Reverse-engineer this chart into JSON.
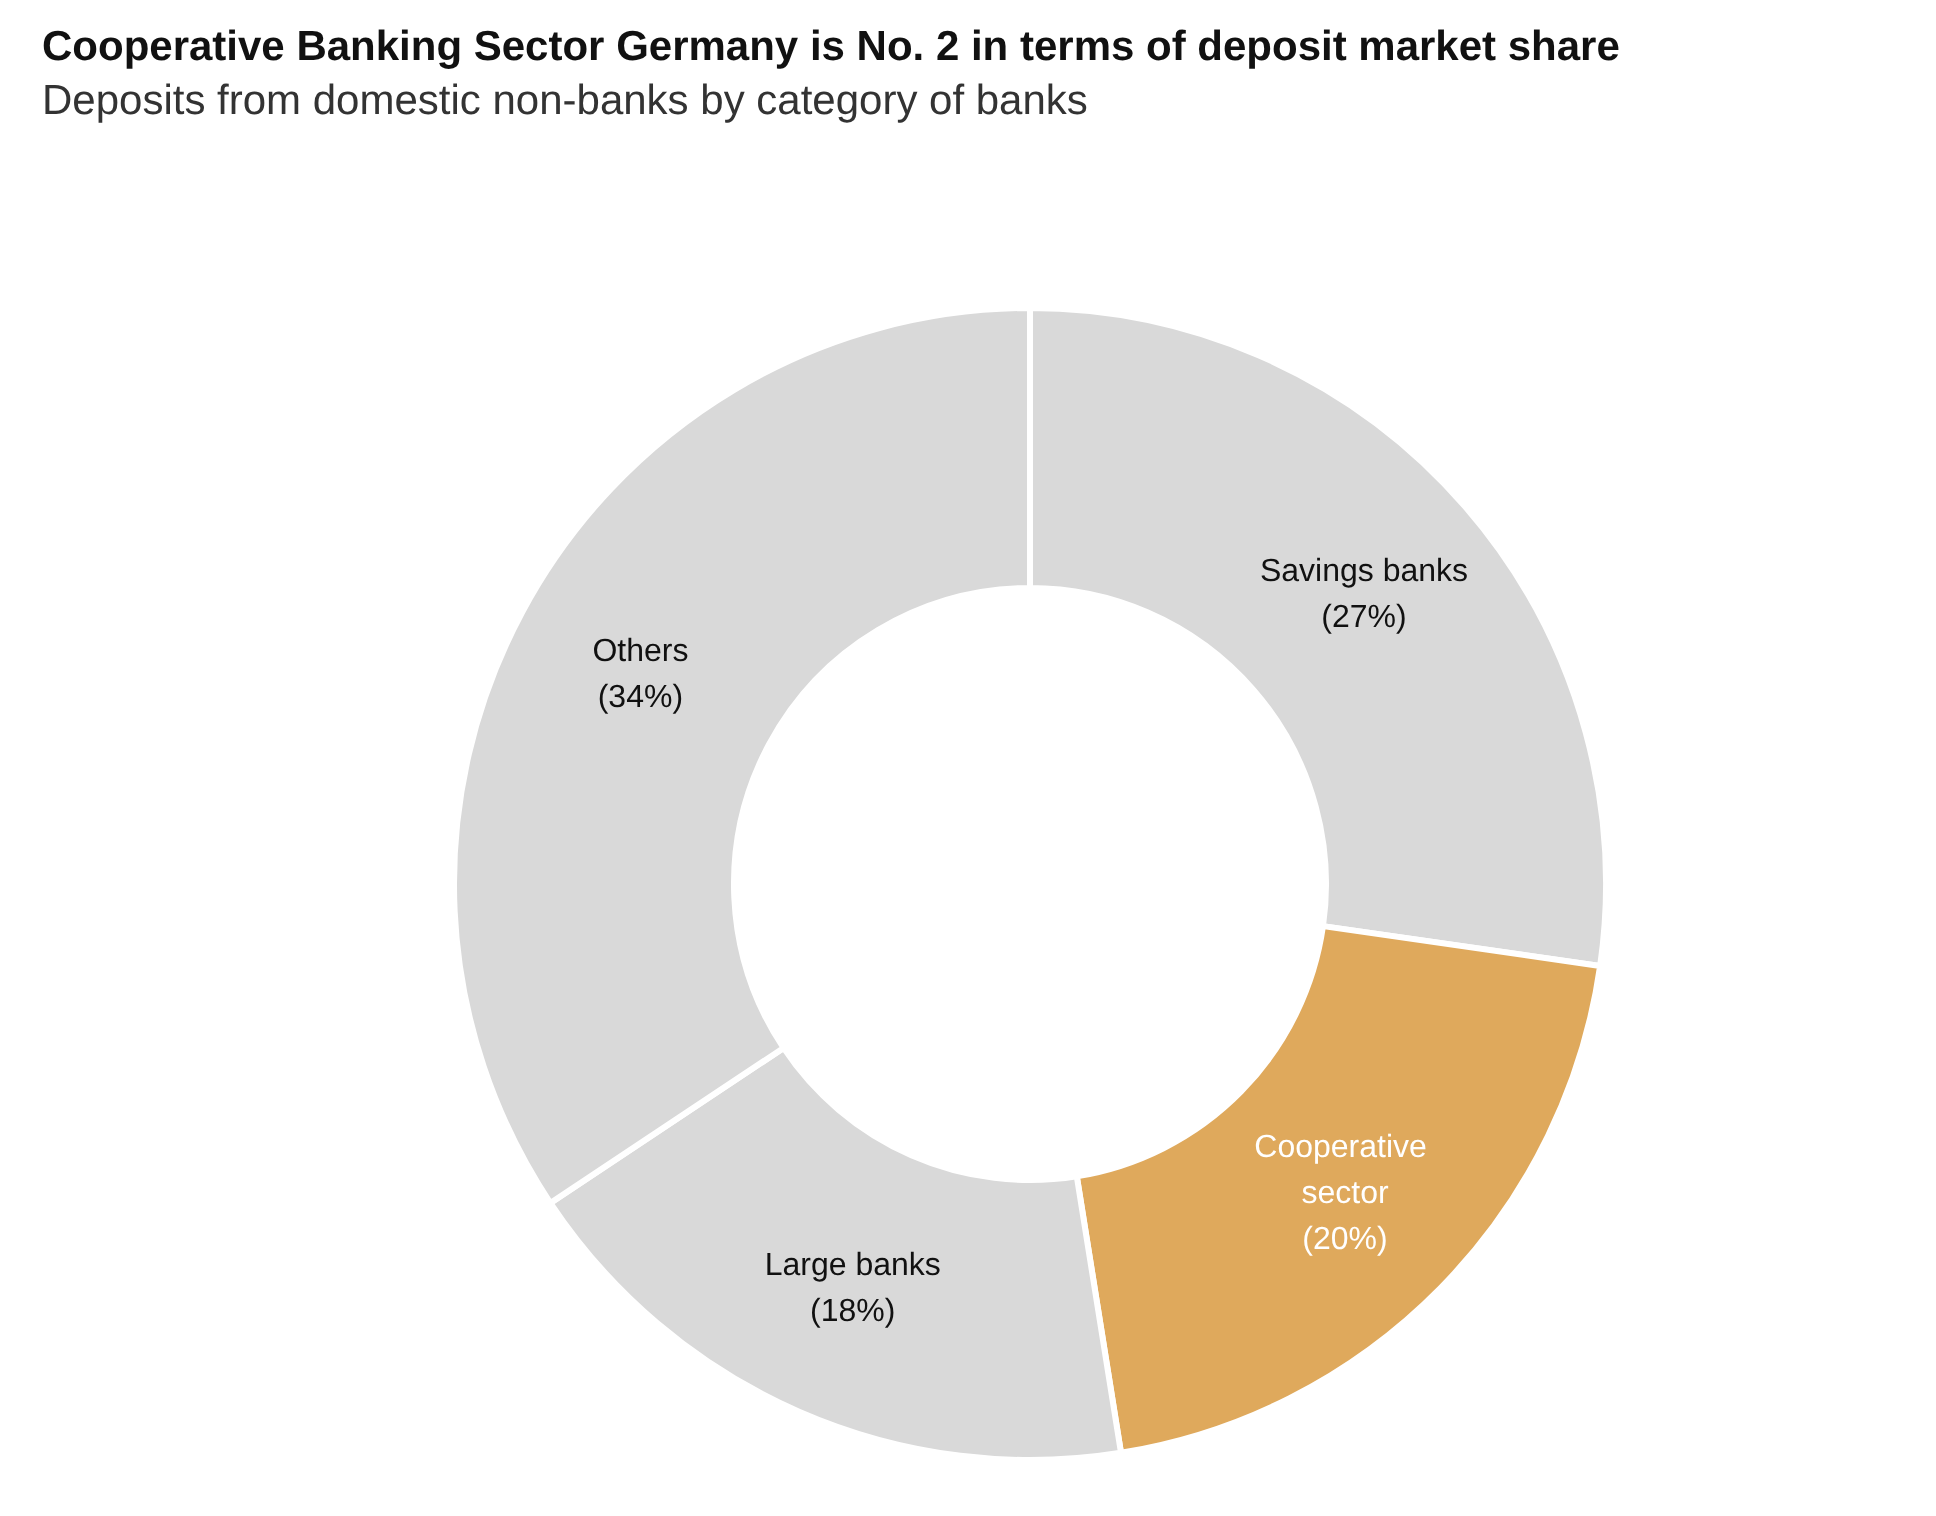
{
  "chart_data": {
    "type": "donut",
    "title": "Cooperative Banking Sector Germany is No. 2 in terms of deposit market share",
    "subtitle": "Deposits from domestic non-banks by category of banks",
    "categories": [
      "Savings banks",
      "Cooperative sector",
      "Large banks",
      "Others"
    ],
    "values": [
      27,
      20,
      18,
      34
    ],
    "value_labels": [
      "(27%)",
      "(20%)",
      "(18%)",
      "(34%)"
    ],
    "colors": [
      "#d9d9d9",
      "#dfa95c",
      "#d9d9d9",
      "#d9d9d9"
    ]
  }
}
